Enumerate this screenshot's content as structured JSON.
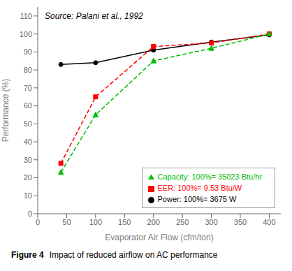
{
  "chart_data": {
    "type": "line",
    "xlabel": "Evaporator Air Flow (cfm/ton)",
    "ylabel": "Performance (%)",
    "annotations": [
      "Source: Palani et al., 1992"
    ],
    "caption": [
      "Figure 4",
      "Impact of reduced airflow on AC performance"
    ],
    "x": [
      40,
      100,
      200,
      300,
      400
    ],
    "xlim": [
      0,
      420
    ],
    "xticks": [
      0,
      50,
      100,
      150,
      200,
      250,
      300,
      350,
      400
    ],
    "ylim": [
      0,
      115
    ],
    "yticks": [
      0,
      10,
      20,
      30,
      40,
      50,
      60,
      70,
      80,
      90,
      100,
      110
    ],
    "grid": false,
    "legend": "lower right",
    "series": [
      {
        "name": "Power: 100%= 3675 W",
        "color": "#000000",
        "marker": "circle",
        "line_style": "solid",
        "values": [
          83,
          84,
          91,
          95.5,
          99.5
        ]
      },
      {
        "name": "EER: 100%= 9.53 Btu/W",
        "color": "#ff0000",
        "marker": "square",
        "line_style": "dashed",
        "values": [
          28,
          65,
          93,
          95,
          100
        ]
      },
      {
        "name": "Capacity: 100%= 35023 Btu/hr",
        "color": "#00bb00",
        "marker": "triangle",
        "line_style": "dashed",
        "values": [
          23,
          55,
          85,
          92,
          100
        ]
      }
    ]
  }
}
